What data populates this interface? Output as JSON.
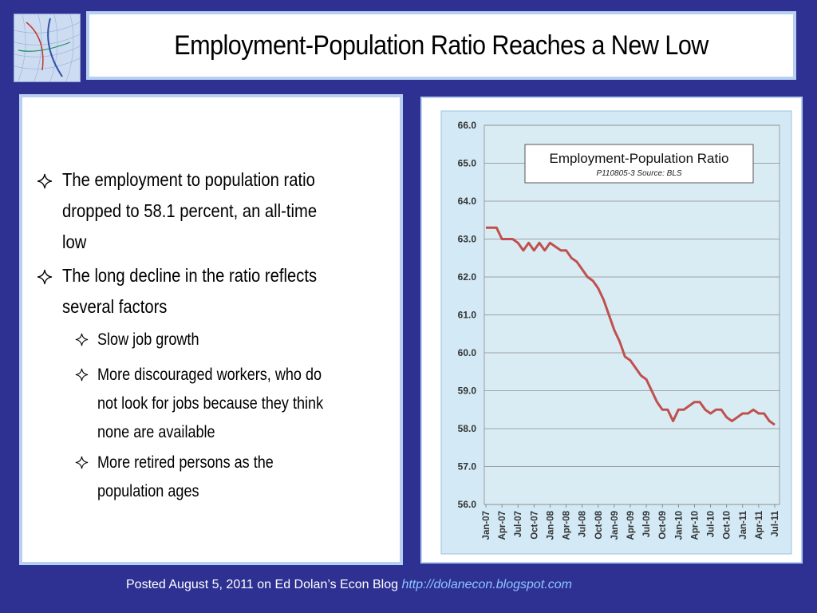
{
  "slide": {
    "title": "Employment-Population Ratio Reaches a New Low",
    "bullets": [
      {
        "level": 1,
        "lines": [
          "The employment to population ratio",
          "dropped to 58.1 percent, an all-time",
          "low"
        ]
      },
      {
        "level": 1,
        "lines": [
          "The long decline in the ratio reflects",
          "several factors"
        ]
      },
      {
        "level": 2,
        "lines": [
          "Slow job growth"
        ]
      },
      {
        "level": 2,
        "lines": [
          "More discouraged workers, who do",
          "not look for jobs because they think",
          "none are available"
        ]
      },
      {
        "level": 2,
        "lines": [
          "More retired persons as the",
          "population ages"
        ]
      }
    ],
    "footer": {
      "text": "Posted August 5, 2011 on Ed Dolan’s Econ Blog",
      "link": "http://dolanecon.blogspot.com"
    }
  },
  "colors": {
    "background": "#2e3192",
    "panel_border": "#b7cff0",
    "plot_background": "#d9ecf4",
    "series_line": "#c0504d",
    "link": "#8ec5ff"
  },
  "chart_data": {
    "type": "line",
    "title": "Employment-Population Ratio",
    "subtitle": "P110805-3 Source: BLS",
    "ylim": [
      56.0,
      66.0
    ],
    "yticks": [
      "56.0",
      "57.0",
      "58.0",
      "59.0",
      "60.0",
      "61.0",
      "62.0",
      "63.0",
      "64.0",
      "65.0",
      "66.0"
    ],
    "x_tick_labels": [
      "Jan-07",
      "Apr-07",
      "Jul-07",
      "Oct-07",
      "Jan-08",
      "Apr-08",
      "Jul-08",
      "Oct-08",
      "Jan-09",
      "Apr-09",
      "Jul-09",
      "Oct-09",
      "Jan-10",
      "Apr-10",
      "Jul-10",
      "Oct-10",
      "Jan-11",
      "Apr-11",
      "Jul-11"
    ],
    "grid": true,
    "legend": "none",
    "x": [
      "Jan-07",
      "Feb-07",
      "Mar-07",
      "Apr-07",
      "May-07",
      "Jun-07",
      "Jul-07",
      "Aug-07",
      "Sep-07",
      "Oct-07",
      "Nov-07",
      "Dec-07",
      "Jan-08",
      "Feb-08",
      "Mar-08",
      "Apr-08",
      "May-08",
      "Jun-08",
      "Jul-08",
      "Aug-08",
      "Sep-08",
      "Oct-08",
      "Nov-08",
      "Dec-08",
      "Jan-09",
      "Feb-09",
      "Mar-09",
      "Apr-09",
      "May-09",
      "Jun-09",
      "Jul-09",
      "Aug-09",
      "Sep-09",
      "Oct-09",
      "Nov-09",
      "Dec-09",
      "Jan-10",
      "Feb-10",
      "Mar-10",
      "Apr-10",
      "May-10",
      "Jun-10",
      "Jul-10",
      "Aug-10",
      "Sep-10",
      "Oct-10",
      "Nov-10",
      "Dec-10",
      "Jan-11",
      "Feb-11",
      "Mar-11",
      "Apr-11",
      "May-11",
      "Jun-11",
      "Jul-11"
    ],
    "series": [
      {
        "values": [
          63.3,
          63.3,
          63.3,
          63.0,
          63.0,
          63.0,
          62.9,
          62.7,
          62.9,
          62.7,
          62.9,
          62.7,
          62.9,
          62.8,
          62.7,
          62.7,
          62.5,
          62.4,
          62.2,
          62.0,
          61.9,
          61.7,
          61.4,
          61.0,
          60.6,
          60.3,
          59.9,
          59.8,
          59.6,
          59.4,
          59.3,
          59.0,
          58.7,
          58.5,
          58.5,
          58.2,
          58.5,
          58.5,
          58.6,
          58.7,
          58.7,
          58.5,
          58.4,
          58.5,
          58.5,
          58.3,
          58.2,
          58.3,
          58.4,
          58.4,
          58.5,
          58.4,
          58.4,
          58.2,
          58.1
        ]
      }
    ]
  }
}
